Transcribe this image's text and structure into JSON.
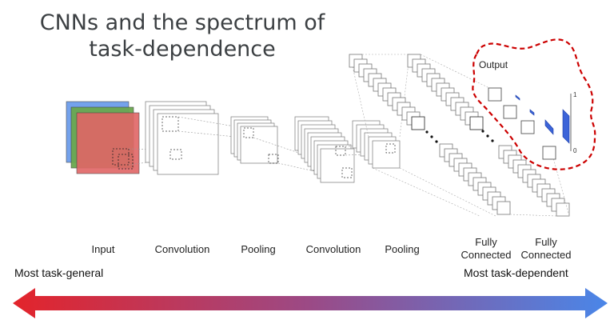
{
  "title": {
    "line1": "CNNs and the spectrum of",
    "line2": "task-dependence"
  },
  "stages": [
    {
      "label": "Input"
    },
    {
      "label": "Convolution"
    },
    {
      "label": "Pooling"
    },
    {
      "label": "Convolution"
    },
    {
      "label": "Pooling"
    },
    {
      "label": "Fully\nConnected"
    },
    {
      "label": "Fully\nConnected"
    }
  ],
  "output": {
    "label": "Output",
    "axis_top": "1",
    "axis_bottom": "0"
  },
  "spectrum": {
    "left_label": "Most task-general",
    "right_label": "Most task-dependent",
    "color_start": "#e3242b",
    "color_end": "#4a86e8"
  },
  "colors": {
    "input_red": "#e06666",
    "input_green": "#6aa84f",
    "input_blue": "#6d9eeb",
    "output_highlight": "#cc0000",
    "bar_blue": "#3c64d8"
  }
}
